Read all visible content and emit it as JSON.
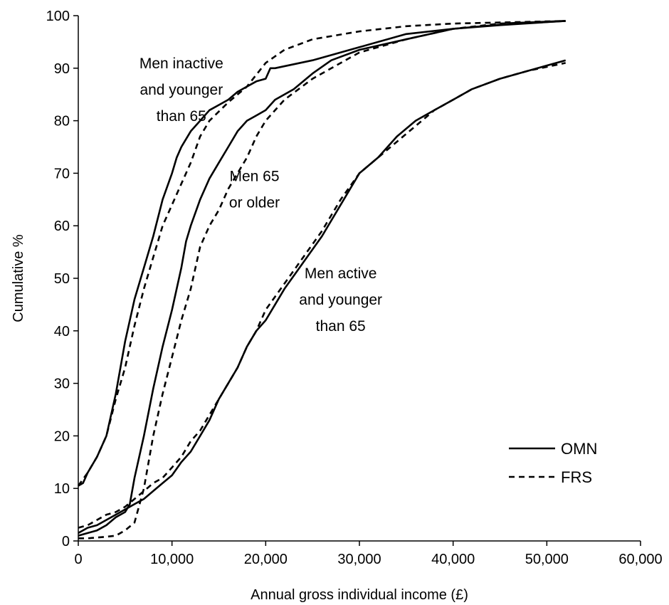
{
  "chart_data": {
    "type": "line",
    "title": "",
    "xlabel": "Annual gross individual income (£)",
    "ylabel": "Cumulative %",
    "xlim": [
      0,
      60000
    ],
    "ylim": [
      0,
      100
    ],
    "xticks": [
      0,
      10000,
      20000,
      30000,
      40000,
      50000,
      60000
    ],
    "xtick_labels": [
      "0",
      "10,000",
      "20,000",
      "30,000",
      "40,000",
      "50,000",
      "60,000"
    ],
    "yticks": [
      0,
      10,
      20,
      30,
      40,
      50,
      60,
      70,
      80,
      90,
      100
    ],
    "ytick_labels": [
      "0",
      "10",
      "20",
      "30",
      "40",
      "50",
      "60",
      "70",
      "80",
      "90",
      "100"
    ],
    "grid": false,
    "legend_position": "bottom-right",
    "legend": [
      {
        "label": "OMN",
        "style": "solid"
      },
      {
        "label": "FRS",
        "style": "dashed"
      }
    ],
    "annotations": [
      {
        "lines": [
          "Men inactive",
          "and younger",
          "than 65"
        ],
        "x": 11000,
        "y": 90
      },
      {
        "lines": [
          "Men 65",
          "or older"
        ],
        "x": 18800,
        "y": 68.5
      },
      {
        "lines": [
          "Men active",
          "and younger",
          "than 65"
        ],
        "x": 28000,
        "y": 50
      }
    ],
    "series": [
      {
        "group": "Men inactive and younger than 65",
        "source": "OMN",
        "style": "solid",
        "points": [
          [
            0,
            10.5
          ],
          [
            500,
            11
          ],
          [
            1000,
            13
          ],
          [
            2000,
            16
          ],
          [
            3000,
            20
          ],
          [
            4000,
            28
          ],
          [
            5000,
            38
          ],
          [
            6000,
            46
          ],
          [
            7000,
            52
          ],
          [
            8000,
            58
          ],
          [
            9000,
            65
          ],
          [
            10000,
            70
          ],
          [
            10500,
            73
          ],
          [
            11000,
            75
          ],
          [
            12000,
            78
          ],
          [
            13000,
            80
          ],
          [
            14000,
            82
          ],
          [
            15000,
            83
          ],
          [
            16000,
            84
          ],
          [
            17000,
            85.5
          ],
          [
            18000,
            86.5
          ],
          [
            19000,
            87.5
          ],
          [
            20000,
            88
          ],
          [
            20500,
            90
          ],
          [
            21000,
            90
          ],
          [
            25000,
            91.5
          ],
          [
            30000,
            94
          ],
          [
            35000,
            96.5
          ],
          [
            40000,
            97.5
          ],
          [
            45000,
            98.2
          ],
          [
            52000,
            99
          ]
        ]
      },
      {
        "group": "Men inactive and younger than 65",
        "source": "FRS",
        "style": "dashed",
        "points": [
          [
            0,
            10.5
          ],
          [
            1000,
            13
          ],
          [
            2000,
            16
          ],
          [
            3000,
            20
          ],
          [
            4000,
            27
          ],
          [
            5000,
            33
          ],
          [
            6000,
            41
          ],
          [
            7000,
            48
          ],
          [
            8000,
            54
          ],
          [
            9000,
            60
          ],
          [
            10000,
            64
          ],
          [
            11000,
            68
          ],
          [
            12000,
            72
          ],
          [
            13000,
            77
          ],
          [
            14000,
            80
          ],
          [
            16000,
            83.5
          ],
          [
            18000,
            86.5
          ],
          [
            20000,
            91
          ],
          [
            22000,
            93.5
          ],
          [
            25000,
            95.5
          ],
          [
            30000,
            97
          ],
          [
            35000,
            98
          ],
          [
            40000,
            98.5
          ],
          [
            45000,
            98.7
          ],
          [
            52000,
            99
          ]
        ]
      },
      {
        "group": "Men 65 or older",
        "source": "OMN",
        "style": "solid",
        "points": [
          [
            0,
            1
          ],
          [
            1000,
            1.5
          ],
          [
            2000,
            2
          ],
          [
            3000,
            3
          ],
          [
            4000,
            4.5
          ],
          [
            5000,
            5.5
          ],
          [
            5500,
            7
          ],
          [
            6000,
            12
          ],
          [
            7000,
            20
          ],
          [
            8000,
            29
          ],
          [
            9000,
            37
          ],
          [
            10000,
            44
          ],
          [
            11000,
            52
          ],
          [
            11500,
            57
          ],
          [
            12000,
            60
          ],
          [
            13000,
            65
          ],
          [
            14000,
            69
          ],
          [
            15000,
            72
          ],
          [
            16000,
            75
          ],
          [
            17000,
            78
          ],
          [
            18000,
            80
          ],
          [
            19000,
            81
          ],
          [
            20000,
            82
          ],
          [
            21000,
            84
          ],
          [
            23000,
            86
          ],
          [
            25000,
            89
          ],
          [
            27000,
            91.5
          ],
          [
            30000,
            93.5
          ],
          [
            35000,
            95.5
          ],
          [
            40000,
            97.5
          ],
          [
            45000,
            98.3
          ],
          [
            52000,
            99
          ]
        ]
      },
      {
        "group": "Men 65 or older",
        "source": "FRS",
        "style": "dashed",
        "points": [
          [
            0,
            0.5
          ],
          [
            1000,
            0.5
          ],
          [
            3000,
            0.8
          ],
          [
            4000,
            1
          ],
          [
            5000,
            2
          ],
          [
            6000,
            3.5
          ],
          [
            7000,
            10
          ],
          [
            8000,
            20
          ],
          [
            9000,
            28
          ],
          [
            10000,
            35
          ],
          [
            11000,
            42
          ],
          [
            12000,
            48
          ],
          [
            13000,
            56
          ],
          [
            14000,
            60
          ],
          [
            15000,
            63
          ],
          [
            16000,
            67
          ],
          [
            17000,
            70
          ],
          [
            18000,
            73
          ],
          [
            19000,
            77
          ],
          [
            20000,
            80
          ],
          [
            22000,
            84
          ],
          [
            25000,
            88
          ],
          [
            30000,
            93
          ],
          [
            35000,
            95.5
          ],
          [
            40000,
            97.5
          ],
          [
            45000,
            98.5
          ],
          [
            52000,
            99
          ]
        ]
      },
      {
        "group": "Men active and younger than 65",
        "source": "OMN",
        "style": "solid",
        "points": [
          [
            0,
            1.5
          ],
          [
            1000,
            2.5
          ],
          [
            2000,
            3
          ],
          [
            3000,
            4
          ],
          [
            4000,
            5
          ],
          [
            5000,
            6
          ],
          [
            6000,
            7
          ],
          [
            7000,
            8
          ],
          [
            8000,
            9.5
          ],
          [
            9000,
            11
          ],
          [
            10000,
            12.5
          ],
          [
            11000,
            15
          ],
          [
            12000,
            17
          ],
          [
            13000,
            20
          ],
          [
            14000,
            23
          ],
          [
            15000,
            27
          ],
          [
            16000,
            30
          ],
          [
            17000,
            33
          ],
          [
            18000,
            37
          ],
          [
            19000,
            40
          ],
          [
            20000,
            42
          ],
          [
            21000,
            45
          ],
          [
            22000,
            48
          ],
          [
            24000,
            53
          ],
          [
            26000,
            58
          ],
          [
            28000,
            64
          ],
          [
            30000,
            70
          ],
          [
            32000,
            73
          ],
          [
            34000,
            77
          ],
          [
            36000,
            80
          ],
          [
            38000,
            82
          ],
          [
            40000,
            84
          ],
          [
            42000,
            86
          ],
          [
            45000,
            88
          ],
          [
            48000,
            89.5
          ],
          [
            52000,
            91.5
          ]
        ]
      },
      {
        "group": "Men active and younger than 65",
        "source": "FRS",
        "style": "dashed",
        "points": [
          [
            0,
            2.5
          ],
          [
            1000,
            3
          ],
          [
            2000,
            4
          ],
          [
            3000,
            5
          ],
          [
            4000,
            5.5
          ],
          [
            5000,
            6.5
          ],
          [
            6000,
            8
          ],
          [
            7000,
            9.5
          ],
          [
            8000,
            11
          ],
          [
            9000,
            12
          ],
          [
            10000,
            14
          ],
          [
            11000,
            16
          ],
          [
            12000,
            19
          ],
          [
            13000,
            21
          ],
          [
            14000,
            24
          ],
          [
            15000,
            27
          ],
          [
            16000,
            30
          ],
          [
            17000,
            33
          ],
          [
            18000,
            37
          ],
          [
            19000,
            40
          ],
          [
            20000,
            44
          ],
          [
            22000,
            49
          ],
          [
            24000,
            54
          ],
          [
            26000,
            59
          ],
          [
            28000,
            65
          ],
          [
            30000,
            70
          ],
          [
            32000,
            73
          ],
          [
            34000,
            76
          ],
          [
            36000,
            79
          ],
          [
            38000,
            82
          ],
          [
            40000,
            84
          ],
          [
            42000,
            86
          ],
          [
            45000,
            88
          ],
          [
            48000,
            89.5
          ],
          [
            52000,
            91
          ]
        ]
      }
    ]
  }
}
